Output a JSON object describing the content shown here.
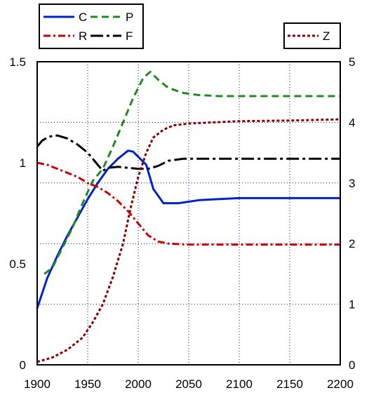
{
  "chart_data": {
    "type": "line",
    "xlabel": "",
    "ylabel": "",
    "xlim": [
      1900,
      2200
    ],
    "ylim_left": [
      0,
      1.5
    ],
    "ylim_right": [
      0,
      5
    ],
    "grid": true,
    "x_ticks": [
      "1900",
      "1950",
      "2000",
      "2050",
      "2100",
      "2150",
      "2200"
    ],
    "y_ticks_left": [
      "0",
      "0.5",
      "1",
      "1.5"
    ],
    "y_ticks_right": [
      "0",
      "1",
      "2",
      "3",
      "4",
      "5"
    ],
    "legends": [
      {
        "placement": "top-left",
        "entries": [
          "C",
          "P",
          "R",
          "F"
        ]
      },
      {
        "placement": "top-right",
        "entries": [
          "Z"
        ]
      }
    ],
    "series": [
      {
        "name": "C",
        "axis": "left",
        "color": "#0022cc",
        "dash": "solid",
        "x": [
          1900,
          1910,
          1920,
          1930,
          1940,
          1950,
          1960,
          1970,
          1980,
          1990,
          1995,
          2000,
          2008,
          2015,
          2025,
          2040,
          2060,
          2080,
          2100,
          2150,
          2200
        ],
        "y": [
          0.28,
          0.43,
          0.54,
          0.64,
          0.73,
          0.82,
          0.9,
          0.97,
          1.02,
          1.06,
          1.055,
          1.03,
          0.99,
          0.87,
          0.8,
          0.8,
          0.815,
          0.82,
          0.825,
          0.825,
          0.825
        ]
      },
      {
        "name": "P",
        "axis": "left",
        "color": "#228822",
        "dash": "dash",
        "x": [
          1907,
          1915,
          1925,
          1935,
          1945,
          1955,
          1965,
          1975,
          1985,
          1995,
          2005,
          2012,
          2020,
          2030,
          2045,
          2060,
          2080,
          2100,
          2150,
          2200
        ],
        "y": [
          0.45,
          0.48,
          0.58,
          0.68,
          0.8,
          0.91,
          0.97,
          1.08,
          1.2,
          1.32,
          1.42,
          1.45,
          1.41,
          1.37,
          1.345,
          1.335,
          1.33,
          1.33,
          1.33,
          1.33
        ]
      },
      {
        "name": "R",
        "axis": "left",
        "color": "#cc0000",
        "dash": "dashdot",
        "x": [
          1900,
          1910,
          1920,
          1930,
          1940,
          1950,
          1960,
          1970,
          1980,
          1990,
          2000,
          2010,
          2020,
          2030,
          2050,
          2100,
          2150,
          2200
        ],
        "y": [
          1.0,
          0.99,
          0.97,
          0.95,
          0.93,
          0.9,
          0.88,
          0.85,
          0.81,
          0.76,
          0.7,
          0.64,
          0.61,
          0.6,
          0.595,
          0.595,
          0.595,
          0.595
        ]
      },
      {
        "name": "F",
        "axis": "left",
        "color": "#000000",
        "dash": "longdash",
        "x": [
          1900,
          1905,
          1912,
          1920,
          1930,
          1940,
          1950,
          1960,
          1965,
          1970,
          1980,
          1990,
          2000,
          2010,
          2020,
          2030,
          2045,
          2060,
          2100,
          2150,
          2200
        ],
        "y": [
          1.08,
          1.11,
          1.13,
          1.135,
          1.12,
          1.09,
          1.05,
          0.99,
          0.96,
          0.975,
          0.98,
          0.975,
          0.97,
          0.97,
          0.985,
          1.01,
          1.02,
          1.02,
          1.02,
          1.02,
          1.02
        ]
      },
      {
        "name": "Z",
        "axis": "right",
        "color": "#880000",
        "dash": "dot",
        "x": [
          1900,
          1915,
          1930,
          1945,
          1955,
          1965,
          1975,
          1985,
          1992,
          2000,
          2008,
          2015,
          2025,
          2035,
          2050,
          2075,
          2100,
          2150,
          2200
        ],
        "y": [
          0.05,
          0.12,
          0.25,
          0.45,
          0.7,
          1.0,
          1.45,
          2.0,
          2.55,
          3.1,
          3.5,
          3.75,
          3.88,
          3.95,
          3.98,
          4.0,
          4.02,
          4.03,
          4.05
        ]
      }
    ]
  }
}
